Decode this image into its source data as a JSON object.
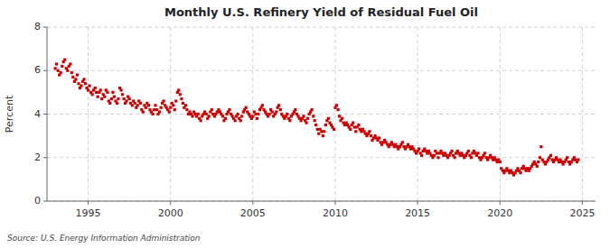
{
  "chart_data": {
    "type": "scatter",
    "title": "Monthly U.S. Refinery Yield of Residual Fuel Oil",
    "ylabel": "Percent",
    "annotations": [
      "Source: U.S. Energy Information Administration"
    ],
    "color": "#cc0000",
    "marker": "square",
    "grid": true,
    "xlim": [
      1992.5,
      2025.8
    ],
    "xticks": [
      1995,
      2000,
      2005,
      2010,
      2015,
      2020,
      2025
    ],
    "ylim": [
      0,
      8
    ],
    "yticks": [
      0,
      2,
      4,
      6,
      8
    ],
    "x": [
      1993.0,
      1993.08,
      1993.17,
      1993.25,
      1993.33,
      1993.42,
      1993.5,
      1993.58,
      1993.67,
      1993.75,
      1993.83,
      1993.92,
      1994.0,
      1994.08,
      1994.17,
      1994.25,
      1994.33,
      1994.42,
      1994.5,
      1994.58,
      1994.67,
      1994.75,
      1994.83,
      1994.92,
      1995.0,
      1995.08,
      1995.17,
      1995.25,
      1995.33,
      1995.42,
      1995.5,
      1995.58,
      1995.67,
      1995.75,
      1995.83,
      1995.92,
      1996.0,
      1996.08,
      1996.17,
      1996.25,
      1996.33,
      1996.42,
      1996.5,
      1996.58,
      1996.67,
      1996.75,
      1996.83,
      1996.92,
      1997.0,
      1997.08,
      1997.17,
      1997.25,
      1997.33,
      1997.42,
      1997.5,
      1997.58,
      1997.67,
      1997.75,
      1997.83,
      1997.92,
      1998.0,
      1998.08,
      1998.17,
      1998.25,
      1998.33,
      1998.42,
      1998.5,
      1998.58,
      1998.67,
      1998.75,
      1998.83,
      1998.92,
      1999.0,
      1999.08,
      1999.17,
      1999.25,
      1999.33,
      1999.42,
      1999.5,
      1999.58,
      1999.67,
      1999.75,
      1999.83,
      1999.92,
      2000.0,
      2000.08,
      2000.17,
      2000.25,
      2000.33,
      2000.42,
      2000.5,
      2000.58,
      2000.67,
      2000.75,
      2000.83,
      2000.92,
      2001.0,
      2001.08,
      2001.17,
      2001.25,
      2001.33,
      2001.42,
      2001.5,
      2001.58,
      2001.67,
      2001.75,
      2001.83,
      2001.92,
      2002.0,
      2002.08,
      2002.17,
      2002.25,
      2002.33,
      2002.42,
      2002.5,
      2002.58,
      2002.67,
      2002.75,
      2002.83,
      2002.92,
      2003.0,
      2003.08,
      2003.17,
      2003.25,
      2003.33,
      2003.42,
      2003.5,
      2003.58,
      2003.67,
      2003.75,
      2003.83,
      2003.92,
      2004.0,
      2004.08,
      2004.17,
      2004.25,
      2004.33,
      2004.42,
      2004.5,
      2004.58,
      2004.67,
      2004.75,
      2004.83,
      2004.92,
      2005.0,
      2005.08,
      2005.17,
      2005.25,
      2005.33,
      2005.42,
      2005.5,
      2005.58,
      2005.67,
      2005.75,
      2005.83,
      2005.92,
      2006.0,
      2006.08,
      2006.17,
      2006.25,
      2006.33,
      2006.42,
      2006.5,
      2006.58,
      2006.67,
      2006.75,
      2006.83,
      2006.92,
      2007.0,
      2007.08,
      2007.17,
      2007.25,
      2007.33,
      2007.42,
      2007.5,
      2007.58,
      2007.67,
      2007.75,
      2007.83,
      2007.92,
      2008.0,
      2008.08,
      2008.17,
      2008.25,
      2008.33,
      2008.42,
      2008.5,
      2008.58,
      2008.67,
      2008.75,
      2008.83,
      2008.92,
      2009.0,
      2009.08,
      2009.17,
      2009.25,
      2009.33,
      2009.42,
      2009.5,
      2009.58,
      2009.67,
      2009.75,
      2009.83,
      2009.92,
      2010.0,
      2010.08,
      2010.17,
      2010.25,
      2010.33,
      2010.42,
      2010.5,
      2010.58,
      2010.67,
      2010.75,
      2010.83,
      2010.92,
      2011.0,
      2011.08,
      2011.17,
      2011.25,
      2011.33,
      2011.42,
      2011.5,
      2011.58,
      2011.67,
      2011.75,
      2011.83,
      2011.92,
      2012.0,
      2012.08,
      2012.17,
      2012.25,
      2012.33,
      2012.42,
      2012.5,
      2012.58,
      2012.67,
      2012.75,
      2012.83,
      2012.92,
      2013.0,
      2013.08,
      2013.17,
      2013.25,
      2013.33,
      2013.42,
      2013.5,
      2013.58,
      2013.67,
      2013.75,
      2013.83,
      2013.92,
      2014.0,
      2014.08,
      2014.17,
      2014.25,
      2014.33,
      2014.42,
      2014.5,
      2014.58,
      2014.67,
      2014.75,
      2014.83,
      2014.92,
      2015.0,
      2015.08,
      2015.17,
      2015.25,
      2015.33,
      2015.42,
      2015.5,
      2015.58,
      2015.67,
      2015.75,
      2015.83,
      2015.92,
      2016.0,
      2016.08,
      2016.17,
      2016.25,
      2016.33,
      2016.42,
      2016.5,
      2016.58,
      2016.67,
      2016.75,
      2016.83,
      2016.92,
      2017.0,
      2017.08,
      2017.17,
      2017.25,
      2017.33,
      2017.42,
      2017.5,
      2017.58,
      2017.67,
      2017.75,
      2017.83,
      2017.92,
      2018.0,
      2018.08,
      2018.17,
      2018.25,
      2018.33,
      2018.42,
      2018.5,
      2018.58,
      2018.67,
      2018.75,
      2018.83,
      2018.92,
      2019.0,
      2019.08,
      2019.17,
      2019.25,
      2019.33,
      2019.42,
      2019.5,
      2019.58,
      2019.67,
      2019.75,
      2019.83,
      2019.92,
      2020.0,
      2020.08,
      2020.17,
      2020.25,
      2020.33,
      2020.42,
      2020.5,
      2020.58,
      2020.67,
      2020.75,
      2020.83,
      2020.92,
      2021.0,
      2021.08,
      2021.17,
      2021.25,
      2021.33,
      2021.42,
      2021.5,
      2021.58,
      2021.67,
      2021.75,
      2021.83,
      2021.92,
      2022.0,
      2022.08,
      2022.17,
      2022.25,
      2022.33,
      2022.42,
      2022.5,
      2022.58,
      2022.67,
      2022.75,
      2022.83,
      2022.92,
      2023.0,
      2023.08,
      2023.17,
      2023.25,
      2023.33,
      2023.42,
      2023.5,
      2023.58,
      2023.67,
      2023.75,
      2023.83,
      2023.92,
      2024.0,
      2024.08,
      2024.17,
      2024.25,
      2024.33,
      2024.42,
      2024.5,
      2024.58,
      2024.67,
      2024.75
    ],
    "values": [
      6.1,
      6.3,
      6.0,
      5.8,
      5.9,
      6.2,
      6.4,
      6.5,
      6.1,
      6.0,
      6.2,
      6.3,
      5.9,
      5.7,
      5.5,
      5.6,
      5.8,
      5.4,
      5.2,
      5.3,
      5.5,
      5.6,
      5.4,
      5.2,
      5.1,
      5.3,
      5.0,
      4.9,
      5.1,
      5.2,
      5.0,
      4.8,
      5.0,
      5.1,
      4.7,
      4.9,
      4.8,
      5.1,
      5.0,
      4.6,
      4.5,
      4.7,
      5.0,
      4.8,
      4.6,
      4.5,
      4.7,
      5.2,
      5.1,
      4.9,
      4.7,
      4.5,
      4.6,
      4.8,
      4.7,
      4.5,
      4.4,
      4.6,
      4.5,
      4.3,
      4.4,
      4.6,
      4.5,
      4.2,
      4.1,
      4.4,
      4.3,
      4.5,
      4.4,
      4.2,
      4.1,
      4.0,
      4.2,
      4.4,
      4.2,
      4.0,
      4.1,
      4.3,
      4.5,
      4.6,
      4.4,
      4.3,
      4.2,
      4.1,
      4.3,
      4.5,
      4.4,
      4.2,
      4.6,
      5.0,
      5.1,
      4.9,
      4.7,
      4.5,
      4.3,
      4.4,
      4.2,
      4.0,
      4.1,
      4.0,
      3.9,
      4.1,
      4.0,
      3.9,
      4.0,
      3.8,
      3.7,
      3.9,
      4.0,
      4.1,
      4.0,
      3.8,
      3.9,
      4.1,
      4.2,
      4.0,
      3.9,
      4.0,
      4.1,
      4.2,
      4.1,
      4.0,
      3.9,
      3.7,
      3.8,
      4.0,
      4.1,
      4.2,
      4.0,
      3.9,
      3.8,
      3.7,
      3.9,
      4.0,
      3.8,
      3.7,
      3.9,
      4.1,
      4.2,
      4.3,
      4.1,
      4.0,
      3.9,
      3.8,
      3.9,
      4.1,
      4.0,
      3.8,
      4.0,
      4.2,
      4.3,
      4.4,
      4.2,
      4.1,
      4.0,
      3.9,
      4.0,
      4.2,
      4.1,
      3.9,
      4.0,
      4.1,
      4.3,
      4.4,
      4.2,
      4.0,
      3.9,
      3.8,
      3.9,
      4.0,
      3.8,
      3.7,
      3.9,
      4.0,
      4.1,
      4.2,
      4.0,
      3.9,
      3.8,
      3.7,
      3.8,
      3.9,
      3.7,
      3.6,
      3.8,
      4.0,
      4.1,
      4.2,
      3.9,
      3.7,
      3.5,
      3.3,
      3.1,
      3.3,
      3.2,
      3.0,
      3.2,
      3.5,
      3.7,
      3.8,
      3.6,
      3.5,
      3.4,
      3.3,
      4.3,
      4.4,
      4.2,
      3.9,
      3.7,
      3.8,
      3.6,
      3.5,
      3.6,
      3.5,
      3.4,
      3.3,
      3.5,
      3.6,
      3.4,
      3.2,
      3.4,
      3.5,
      3.3,
      3.2,
      3.3,
      3.2,
      3.1,
      3.0,
      3.1,
      3.2,
      3.0,
      2.8,
      2.9,
      3.0,
      2.9,
      2.8,
      2.9,
      2.7,
      2.6,
      2.7,
      2.8,
      2.7,
      2.6,
      2.5,
      2.6,
      2.7,
      2.6,
      2.5,
      2.6,
      2.5,
      2.4,
      2.5,
      2.6,
      2.7,
      2.5,
      2.4,
      2.5,
      2.6,
      2.5,
      2.4,
      2.5,
      2.4,
      2.3,
      2.2,
      2.3,
      2.4,
      2.2,
      2.1,
      2.3,
      2.4,
      2.3,
      2.2,
      2.3,
      2.2,
      2.1,
      2.0,
      2.1,
      2.3,
      2.2,
      2.0,
      2.2,
      2.3,
      2.2,
      2.1,
      2.2,
      2.1,
      2.0,
      2.1,
      2.2,
      2.3,
      2.1,
      2.0,
      2.2,
      2.3,
      2.2,
      2.1,
      2.2,
      2.1,
      2.0,
      2.1,
      2.2,
      2.3,
      2.1,
      2.0,
      2.2,
      2.3,
      2.2,
      2.1,
      2.2,
      2.0,
      1.9,
      2.0,
      2.1,
      2.2,
      2.0,
      1.9,
      2.0,
      2.1,
      2.0,
      1.9,
      2.0,
      1.9,
      1.8,
      1.9,
      1.8,
      1.5,
      1.4,
      1.3,
      1.4,
      1.5,
      1.4,
      1.3,
      1.4,
      1.3,
      1.2,
      1.3,
      1.4,
      1.5,
      1.4,
      1.3,
      1.5,
      1.6,
      1.5,
      1.4,
      1.5,
      1.4,
      1.5,
      1.6,
      1.7,
      1.8,
      1.7,
      1.6,
      1.8,
      2.0,
      2.5,
      1.9,
      1.8,
      1.7,
      1.8,
      1.9,
      2.0,
      2.1,
      1.9,
      1.8,
      1.9,
      2.0,
      1.9,
      1.8,
      1.9,
      1.8,
      1.7,
      1.8,
      1.9,
      2.0,
      1.8,
      1.7,
      1.8,
      1.9,
      2.0,
      1.9,
      1.8,
      1.9
    ]
  }
}
